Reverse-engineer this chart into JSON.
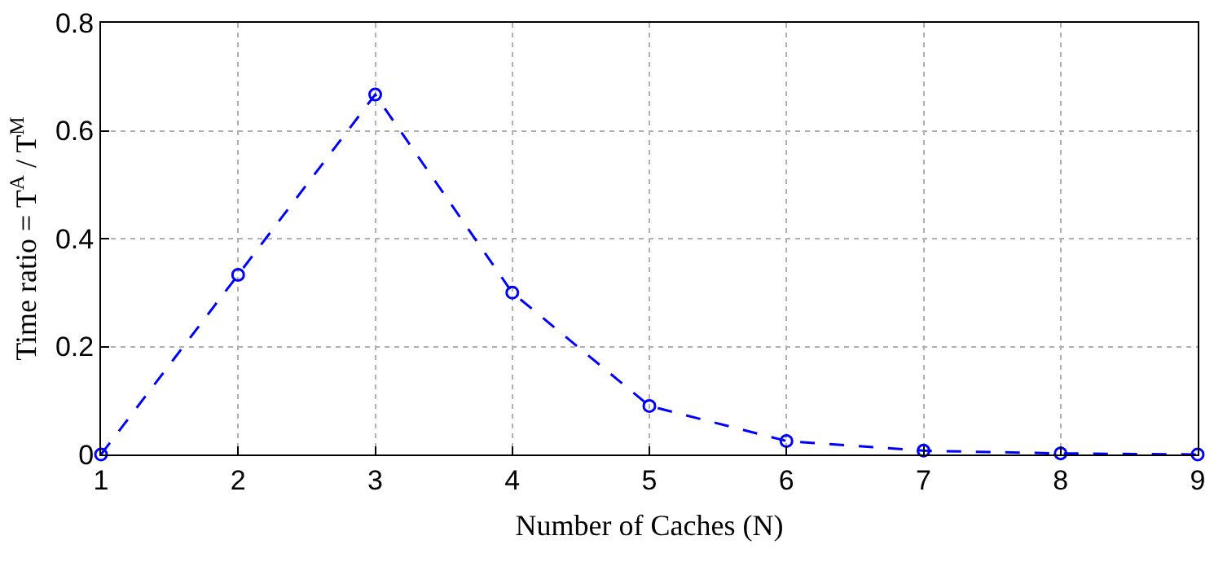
{
  "chart_data": {
    "type": "line",
    "xlabel": "Number of Caches (N)",
    "ylabel": "Time ratio = T$^{A}$ / T$^{M}$",
    "x": [
      1,
      2,
      3,
      4,
      5,
      6,
      7,
      8,
      9
    ],
    "series": [
      {
        "color": "#0000ff",
        "values": [
          0,
          0.333,
          0.667,
          0.3,
          0.09,
          0.025,
          0.007,
          0.002,
          0
        ]
      }
    ],
    "xlim": [
      1,
      9
    ],
    "xticks": [
      1,
      2,
      3,
      4,
      5,
      6,
      7,
      8,
      9
    ],
    "ylim": [
      0,
      0.8
    ],
    "yticks": [
      0,
      0.2,
      0.4,
      0.6,
      0.8
    ],
    "grid": true,
    "legend": false,
    "marker": "circle",
    "line_style": "dashed"
  }
}
